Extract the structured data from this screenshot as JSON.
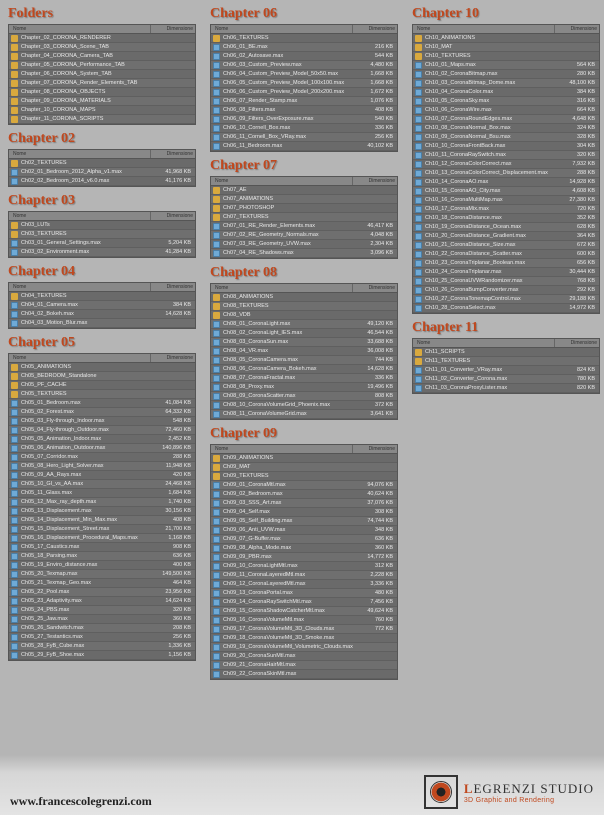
{
  "headers": {
    "name": "Nome",
    "size": "Dimensione"
  },
  "columns": [
    {
      "sections": [
        {
          "title": "Folders",
          "items": [
            {
              "t": "folder",
              "n": "Chapter_02_CORONA_RENDERER"
            },
            {
              "t": "folder",
              "n": "Chapter_03_CORONA_Scene_TAB"
            },
            {
              "t": "folder",
              "n": "Chapter_04_CORONA_Camera_TAB"
            },
            {
              "t": "folder",
              "n": "Chapter_05_CORONA_Performance_TAB"
            },
            {
              "t": "folder",
              "n": "Chapter_06_CORONA_System_TAB"
            },
            {
              "t": "folder",
              "n": "Chapter_07_CORONA_Render_Elements_TAB"
            },
            {
              "t": "folder",
              "n": "Chapter_08_CORONA_OBJECTS"
            },
            {
              "t": "folder",
              "n": "Chapter_09_CORONA_MATERIALS"
            },
            {
              "t": "folder",
              "n": "Chapter_10_CORONA_MAPS"
            },
            {
              "t": "folder",
              "n": "Chapter_11_CORONA_SCRIPTS"
            }
          ]
        },
        {
          "title": "Chapter 02",
          "items": [
            {
              "t": "folder",
              "n": "Ch02_TEXTURES"
            },
            {
              "t": "file",
              "n": "Ch02_01_Bedroom_2012_Alpha_v1.max",
              "s": "41,968 KB"
            },
            {
              "t": "file",
              "n": "Ch02_02_Bedroom_2014_v6.0.max",
              "s": "41,176 KB"
            }
          ]
        },
        {
          "title": "Chapter 03",
          "items": [
            {
              "t": "folder",
              "n": "Ch03_LUTs"
            },
            {
              "t": "folder",
              "n": "Ch03_TEXTURES"
            },
            {
              "t": "file",
              "n": "Ch03_01_General_Settings.max",
              "s": "5,204 KB"
            },
            {
              "t": "file",
              "n": "Ch03_02_Environment.max",
              "s": "41,284 KB"
            }
          ]
        },
        {
          "title": "Chapter 04",
          "items": [
            {
              "t": "folder",
              "n": "Ch04_TEXTURES"
            },
            {
              "t": "file",
              "n": "Ch04_01_Camera.max",
              "s": "384 KB"
            },
            {
              "t": "file",
              "n": "Ch04_02_Bokeh.max",
              "s": "14,628 KB"
            },
            {
              "t": "file",
              "n": "Ch04_03_Motion_Blur.max"
            }
          ]
        },
        {
          "title": "Chapter 05",
          "items": [
            {
              "t": "folder",
              "n": "Ch05_ANIMATIONS"
            },
            {
              "t": "folder",
              "n": "Ch05_BEDROOM_Standalone"
            },
            {
              "t": "folder",
              "n": "Ch05_PF_CACHE"
            },
            {
              "t": "folder",
              "n": "Ch05_TEXTURES"
            },
            {
              "t": "file",
              "n": "Ch05_01_Bedroom.max",
              "s": "41,084 KB"
            },
            {
              "t": "file",
              "n": "Ch05_02_Forest.max",
              "s": "64,332 KB"
            },
            {
              "t": "file",
              "n": "Ch05_03_Fly-through_Indoor.max",
              "s": "548 KB"
            },
            {
              "t": "file",
              "n": "Ch05_04_Fly-through_Outdoor.max",
              "s": "72,460 KB"
            },
            {
              "t": "file",
              "n": "Ch05_05_Animation_Indoor.max",
              "s": "2,452 KB"
            },
            {
              "t": "file",
              "n": "Ch05_06_Animation_Outdoor.max",
              "s": "140,896 KB"
            },
            {
              "t": "file",
              "n": "Ch05_07_Corridor.max",
              "s": "288 KB"
            },
            {
              "t": "file",
              "n": "Ch05_08_Hero_Light_Solver.max",
              "s": "11,948 KB"
            },
            {
              "t": "file",
              "n": "Ch05_09_AA_Rays.max",
              "s": "420 KB"
            },
            {
              "t": "file",
              "n": "Ch05_10_GI_vs_AA.max",
              "s": "24,468 KB"
            },
            {
              "t": "file",
              "n": "Ch05_11_Glass.max",
              "s": "1,684 KB"
            },
            {
              "t": "file",
              "n": "Ch05_12_Max_ray_depth.max",
              "s": "1,740 KB"
            },
            {
              "t": "file",
              "n": "Ch05_13_Displacement.max",
              "s": "30,156 KB"
            },
            {
              "t": "file",
              "n": "Ch05_14_Displacement_Min_Max.max",
              "s": "408 KB"
            },
            {
              "t": "file",
              "n": "Ch05_15_Displacement_Street.max",
              "s": "21,700 KB"
            },
            {
              "t": "file",
              "n": "Ch05_16_Displacement_Procedural_Maps.max",
              "s": "1,168 KB"
            },
            {
              "t": "file",
              "n": "Ch05_17_Caustics.max",
              "s": "908 KB"
            },
            {
              "t": "file",
              "n": "Ch05_18_Parsing.max",
              "s": "636 KB"
            },
            {
              "t": "file",
              "n": "Ch05_19_Enviro_distance.max",
              "s": "400 KB"
            },
            {
              "t": "file",
              "n": "Ch05_20_Texmap.max",
              "s": "149,500 KB"
            },
            {
              "t": "file",
              "n": "Ch05_21_Texmap_Geo.max",
              "s": "464 KB"
            },
            {
              "t": "file",
              "n": "Ch05_22_Pool.max",
              "s": "23,956 KB"
            },
            {
              "t": "file",
              "n": "Ch05_23_Adaptivity.max",
              "s": "14,624 KB"
            },
            {
              "t": "file",
              "n": "Ch05_24_PBS.max",
              "s": "320 KB"
            },
            {
              "t": "file",
              "n": "Ch05_25_Jaw.max",
              "s": "360 KB"
            },
            {
              "t": "file",
              "n": "Ch05_26_Sandwitch.max",
              "s": "208 KB"
            },
            {
              "t": "file",
              "n": "Ch05_27_Testantics.max",
              "s": "256 KB"
            },
            {
              "t": "file",
              "n": "Ch05_28_FyB_Cube.max",
              "s": "1,336 KB"
            },
            {
              "t": "file",
              "n": "Ch05_29_FyB_Shoe.max",
              "s": "1,156 KB"
            }
          ]
        }
      ]
    },
    {
      "sections": [
        {
          "title": "Chapter 06",
          "items": [
            {
              "t": "folder",
              "n": "Ch06_TEXTURES"
            },
            {
              "t": "file",
              "n": "Ch06_01_BE.max",
              "s": "216 KB"
            },
            {
              "t": "file",
              "n": "Ch06_02_Autosave.max",
              "s": "544 KB"
            },
            {
              "t": "file",
              "n": "Ch06_03_Custom_Preview.max",
              "s": "4,480 KB"
            },
            {
              "t": "file",
              "n": "Ch06_04_Custom_Preview_Model_50x50.max",
              "s": "1,668 KB"
            },
            {
              "t": "file",
              "n": "Ch06_05_Custom_Preview_Model_100x100.max",
              "s": "1,668 KB"
            },
            {
              "t": "file",
              "n": "Ch06_06_Custom_Preview_Model_200x200.max",
              "s": "1,672 KB"
            },
            {
              "t": "file",
              "n": "Ch06_07_Render_Stamp.max",
              "s": "1,076 KB"
            },
            {
              "t": "file",
              "n": "Ch06_08_Filters.max",
              "s": "408 KB"
            },
            {
              "t": "file",
              "n": "Ch06_09_Filters_OverExposure.max",
              "s": "540 KB"
            },
            {
              "t": "file",
              "n": "Ch06_10_Cornell_Box.max",
              "s": "336 KB"
            },
            {
              "t": "file",
              "n": "Ch06_11_Cornell_Box_VRay.max",
              "s": "256 KB"
            },
            {
              "t": "file",
              "n": "Ch06_11_Bedroom.max",
              "s": "40,102 KB"
            }
          ]
        },
        {
          "title": "Chapter 07",
          "items": [
            {
              "t": "folder",
              "n": "Ch07_AE"
            },
            {
              "t": "folder",
              "n": "Ch07_ANIMATIONS"
            },
            {
              "t": "folder",
              "n": "Ch07_PHOTOSHOP"
            },
            {
              "t": "folder",
              "n": "Ch07_TEXTURES"
            },
            {
              "t": "file",
              "n": "Ch07_01_RE_Render_Elements.max",
              "s": "46,417 KB"
            },
            {
              "t": "file",
              "n": "Ch07_02_RE_Geometry_Normals.max",
              "s": "4,048 KB"
            },
            {
              "t": "file",
              "n": "Ch07_03_RE_Geometry_UVW.max",
              "s": "2,304 KB"
            },
            {
              "t": "file",
              "n": "Ch07_04_RE_Shadows.max",
              "s": "3,096 KB"
            }
          ]
        },
        {
          "title": "Chapter 08",
          "items": [
            {
              "t": "folder",
              "n": "Ch08_ANIMATIONS"
            },
            {
              "t": "folder",
              "n": "Ch08_TEXTURES"
            },
            {
              "t": "folder",
              "n": "Ch08_VDB"
            },
            {
              "t": "file",
              "n": "Ch08_01_CoronaLight.max",
              "s": "49,120 KB"
            },
            {
              "t": "file",
              "n": "Ch08_02_CoronaLight_IES.max",
              "s": "46,544 KB"
            },
            {
              "t": "file",
              "n": "Ch08_03_CoronaSun.max",
              "s": "33,688 KB"
            },
            {
              "t": "file",
              "n": "Ch08_04_VR.max",
              "s": "36,008 KB"
            },
            {
              "t": "file",
              "n": "Ch08_05_CoronaCamera.max",
              "s": "744 KB"
            },
            {
              "t": "file",
              "n": "Ch08_06_CoronaCamera_Bokeh.max",
              "s": "14,628 KB"
            },
            {
              "t": "file",
              "n": "Ch08_07_CoronaFractal.max",
              "s": "336 KB"
            },
            {
              "t": "file",
              "n": "Ch08_08_Proxy.max",
              "s": "19,496 KB"
            },
            {
              "t": "file",
              "n": "Ch08_09_CoronaScatter.max",
              "s": "808 KB"
            },
            {
              "t": "file",
              "n": "Ch08_10_CoronaVolumeGrid_Phoenix.max",
              "s": "372 KB"
            },
            {
              "t": "file",
              "n": "Ch08_11_CoronaVolumeGrid.max",
              "s": "3,641 KB"
            }
          ]
        },
        {
          "title": "Chapter 09",
          "items": [
            {
              "t": "folder",
              "n": "Ch09_ANIMATIONS"
            },
            {
              "t": "folder",
              "n": "Ch09_MAT"
            },
            {
              "t": "folder",
              "n": "Ch09_TEXTURES"
            },
            {
              "t": "file",
              "n": "Ch09_01_CoronaMtl.max",
              "s": "94,076 KB"
            },
            {
              "t": "file",
              "n": "Ch09_02_Bedroom.max",
              "s": "40,624 KB"
            },
            {
              "t": "file",
              "n": "Ch09_03_SSS_Art.max",
              "s": "37,076 KB"
            },
            {
              "t": "file",
              "n": "Ch09_04_Self.max",
              "s": "308 KB"
            },
            {
              "t": "file",
              "n": "Ch09_05_Self_Building.max",
              "s": "74,744 KB"
            },
            {
              "t": "file",
              "n": "Ch09_06_Anti_UVW.max",
              "s": "348 KB"
            },
            {
              "t": "file",
              "n": "Ch09_07_G-Buffer.max",
              "s": "636 KB"
            },
            {
              "t": "file",
              "n": "Ch09_08_Alpha_Mode.max",
              "s": "360 KB"
            },
            {
              "t": "file",
              "n": "Ch09_09_PBR.max",
              "s": "14,772 KB"
            },
            {
              "t": "file",
              "n": "Ch09_10_CoronaLightMtl.max",
              "s": "312 KB"
            },
            {
              "t": "file",
              "n": "Ch09_11_CoronaLayeredMtl.max",
              "s": "2,228 KB"
            },
            {
              "t": "file",
              "n": "Ch09_12_CoronaLayeredMtl.max",
              "s": "3,336 KB"
            },
            {
              "t": "file",
              "n": "Ch09_13_CoronaPortal.max",
              "s": "480 KB"
            },
            {
              "t": "file",
              "n": "Ch09_14_CoronaRaySwitchMtl.max",
              "s": "7,456 KB"
            },
            {
              "t": "file",
              "n": "Ch09_15_CoronaShadowCatcherMtl.max",
              "s": "49,624 KB"
            },
            {
              "t": "file",
              "n": "Ch09_16_CoronaVolumeMtl.max",
              "s": "760 KB"
            },
            {
              "t": "file",
              "n": "Ch09_17_CoronaVolumeMtl_3D_Clouds.max",
              "s": "772 KB"
            },
            {
              "t": "file",
              "n": "Ch09_18_CoronaVolumeMtl_3D_Smoke.max"
            },
            {
              "t": "file",
              "n": "Ch09_19_CoronaVolumeMtl_Volumetric_Clouds.max"
            },
            {
              "t": "file",
              "n": "Ch09_20_CoronaSunMtl.max"
            },
            {
              "t": "file",
              "n": "Ch09_21_CoronaHairMtl.max"
            },
            {
              "t": "file",
              "n": "Ch09_22_CoronaSkinMtl.max"
            }
          ]
        }
      ]
    },
    {
      "sections": [
        {
          "title": "Chapter 10",
          "items": [
            {
              "t": "folder",
              "n": "Ch10_ANIMATIONS"
            },
            {
              "t": "folder",
              "n": "Ch10_MAT"
            },
            {
              "t": "folder",
              "n": "Ch10_TEXTURES"
            },
            {
              "t": "file",
              "n": "Ch10_01_Maps.max",
              "s": "564 KB"
            },
            {
              "t": "file",
              "n": "Ch10_02_CoronaBitmap.max",
              "s": "280 KB"
            },
            {
              "t": "file",
              "n": "Ch10_03_CoronaBitmap_Dome.max",
              "s": "48,100 KB"
            },
            {
              "t": "file",
              "n": "Ch10_04_CoronaColor.max",
              "s": "384 KB"
            },
            {
              "t": "file",
              "n": "Ch10_05_CoronaSky.max",
              "s": "316 KB"
            },
            {
              "t": "file",
              "n": "Ch10_06_CoronaWire.max",
              "s": "664 KB"
            },
            {
              "t": "file",
              "n": "Ch10_07_CoronaRoundEdges.max",
              "s": "4,648 KB"
            },
            {
              "t": "file",
              "n": "Ch10_08_CoronaNormal_Box.max",
              "s": "324 KB"
            },
            {
              "t": "file",
              "n": "Ch10_09_CoronaNormal_Bsu.max",
              "s": "328 KB"
            },
            {
              "t": "file",
              "n": "Ch10_10_CoronaFrontBack.max",
              "s": "304 KB"
            },
            {
              "t": "file",
              "n": "Ch10_11_CoronaRaySwitch.max",
              "s": "320 KB"
            },
            {
              "t": "file",
              "n": "Ch10_12_CoronaColorCorrect.max",
              "s": "7,932 KB"
            },
            {
              "t": "file",
              "n": "Ch10_13_CoronaColorCorrect_Displacement.max",
              "s": "288 KB"
            },
            {
              "t": "file",
              "n": "Ch10_14_CoronaAO.max",
              "s": "14,928 KB"
            },
            {
              "t": "file",
              "n": "Ch10_15_CoronaAO_City.max",
              "s": "4,608 KB"
            },
            {
              "t": "file",
              "n": "Ch10_16_CoronaMultiMap.max",
              "s": "27,380 KB"
            },
            {
              "t": "file",
              "n": "Ch10_17_CoronaMix.max",
              "s": "720 KB"
            },
            {
              "t": "file",
              "n": "Ch10_18_CoronaDistance.max",
              "s": "352 KB"
            },
            {
              "t": "file",
              "n": "Ch10_19_CoronaDistance_Ocean.max",
              "s": "628 KB"
            },
            {
              "t": "file",
              "n": "Ch10_20_CoronaDistance_Gradient.max",
              "s": "364 KB"
            },
            {
              "t": "file",
              "n": "Ch10_21_CoronaDistance_Size.max",
              "s": "672 KB"
            },
            {
              "t": "file",
              "n": "Ch10_22_CoronaDistance_Scatter.max",
              "s": "600 KB"
            },
            {
              "t": "file",
              "n": "Ch10_23_CoronaTriplanar_Boolean.max",
              "s": "656 KB"
            },
            {
              "t": "file",
              "n": "Ch10_24_CoronaTriplanar.max",
              "s": "30,444 KB"
            },
            {
              "t": "file",
              "n": "Ch10_25_CoronaUVWRandomizer.max",
              "s": "768 KB"
            },
            {
              "t": "file",
              "n": "Ch10_26_CoronaBumpConverter.max",
              "s": "292 KB"
            },
            {
              "t": "file",
              "n": "Ch10_27_CoronaTonemapControl.max",
              "s": "29,188 KB"
            },
            {
              "t": "file",
              "n": "Ch10_28_CoronaSelect.max",
              "s": "14,972 KB"
            }
          ]
        },
        {
          "title": "Chapter 11",
          "items": [
            {
              "t": "folder",
              "n": "Ch11_SCRIPTS"
            },
            {
              "t": "folder",
              "n": "Ch11_TEXTURES"
            },
            {
              "t": "file",
              "n": "Ch11_01_Converter_VRay.max",
              "s": "824 KB"
            },
            {
              "t": "file",
              "n": "Ch11_02_Converter_Corona.max",
              "s": "780 KB"
            },
            {
              "t": "file",
              "n": "Ch11_03_CoronaProxyLister.max",
              "s": "820 KB"
            }
          ]
        }
      ]
    }
  ],
  "footer": {
    "url": "www.francescolegrenzi.com",
    "brand": "LEGRENZI STUDIO",
    "tagline": "3D Graphic and Rendering"
  }
}
